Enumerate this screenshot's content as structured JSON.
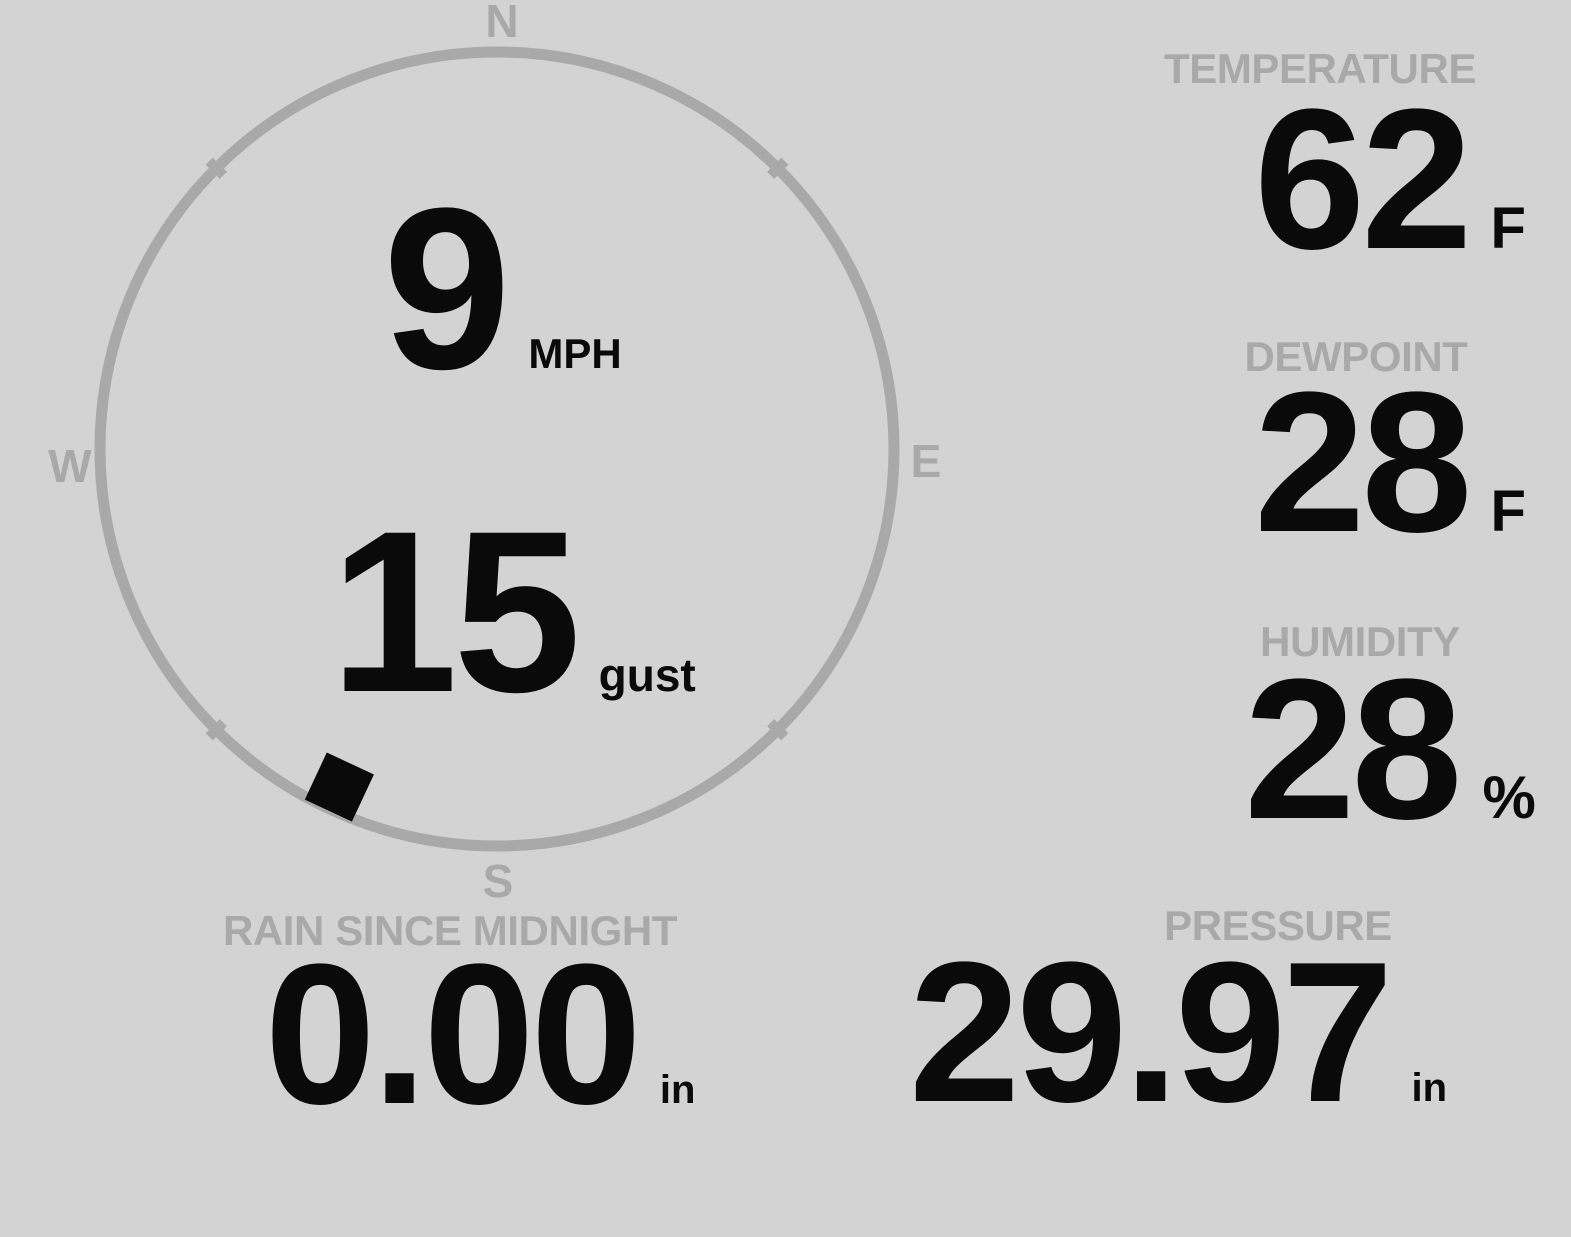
{
  "colors": {
    "background": "#d3d3d3",
    "muted_gray": "#a9a9a9",
    "value_black": "#0a0a0a"
  },
  "compass": {
    "cardinals": {
      "north": "N",
      "east": "E",
      "south": "S",
      "west": "W"
    },
    "wind_speed": {
      "value": "9",
      "unit": "MPH"
    },
    "wind_gust": {
      "value": "15",
      "unit": "gust"
    },
    "direction_degrees": 205
  },
  "metrics": {
    "temperature": {
      "label": "TEMPERATURE",
      "value": "62",
      "unit": "F"
    },
    "dewpoint": {
      "label": "DEWPOINT",
      "value": "28",
      "unit": "F"
    },
    "humidity": {
      "label": "HUMIDITY",
      "value": "28",
      "unit": "%"
    },
    "rain": {
      "label": "RAIN SINCE MIDNIGHT",
      "value": "0.00",
      "unit": "in"
    },
    "pressure": {
      "label": "PRESSURE",
      "value": "29.97",
      "unit": "in"
    }
  }
}
